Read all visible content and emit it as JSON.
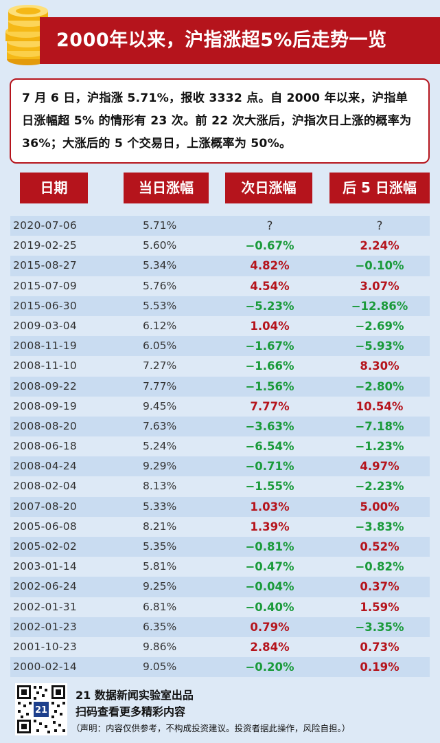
{
  "header": {
    "title": "2000年以来，沪指涨超5%后走势一览"
  },
  "intro": {
    "text": "7 月 6 日，沪指涨 5.71%，报收 3332 点。自 2000 年以来，沪指单日涨幅超 5% 的情形有 23 次。前 22 次大涨后，沪指次日上涨的概率为 36%；大涨后的 5 个交易日，上涨概率为 50%。"
  },
  "columns": [
    "日期",
    "当日涨幅",
    "次日涨幅",
    "后 5 日涨幅"
  ],
  "rows": [
    {
      "date": "2020-07-06",
      "day": "5.71%",
      "next": "?",
      "five": "?"
    },
    {
      "date": "2019-02-25",
      "day": "5.60%",
      "next": "−0.67%",
      "five": "2.24%"
    },
    {
      "date": "2015-08-27",
      "day": "5.34%",
      "next": "4.82%",
      "five": "−0.10%"
    },
    {
      "date": "2015-07-09",
      "day": "5.76%",
      "next": "4.54%",
      "five": "3.07%"
    },
    {
      "date": "2015-06-30",
      "day": "5.53%",
      "next": "−5.23%",
      "five": "−12.86%"
    },
    {
      "date": "2009-03-04",
      "day": "6.12%",
      "next": "1.04%",
      "five": "−2.69%"
    },
    {
      "date": "2008-11-19",
      "day": "6.05%",
      "next": "−1.67%",
      "five": "−5.93%"
    },
    {
      "date": "2008-11-10",
      "day": "7.27%",
      "next": "−1.66%",
      "five": "8.30%"
    },
    {
      "date": "2008-09-22",
      "day": "7.77%",
      "next": "−1.56%",
      "five": "−2.80%"
    },
    {
      "date": "2008-09-19",
      "day": "9.45%",
      "next": "7.77%",
      "five": "10.54%"
    },
    {
      "date": "2008-08-20",
      "day": "7.63%",
      "next": "−3.63%",
      "five": "−7.18%"
    },
    {
      "date": "2008-06-18",
      "day": "5.24%",
      "next": "−6.54%",
      "five": "−1.23%"
    },
    {
      "date": "2008-04-24",
      "day": "9.29%",
      "next": "−0.71%",
      "five": "4.97%"
    },
    {
      "date": "2008-02-04",
      "day": "8.13%",
      "next": "−1.55%",
      "five": "−2.23%"
    },
    {
      "date": "2007-08-20",
      "day": "5.33%",
      "next": "1.03%",
      "five": "5.00%"
    },
    {
      "date": "2005-06-08",
      "day": "8.21%",
      "next": "1.39%",
      "five": "−3.83%"
    },
    {
      "date": "2005-02-02",
      "day": "5.35%",
      "next": "−0.81%",
      "five": "0.52%"
    },
    {
      "date": "2003-01-14",
      "day": "5.81%",
      "next": "−0.47%",
      "five": "−0.82%"
    },
    {
      "date": "2002-06-24",
      "day": "9.25%",
      "next": "−0.04%",
      "five": "0.37%"
    },
    {
      "date": "2002-01-31",
      "day": "6.81%",
      "next": "−0.40%",
      "five": "1.59%"
    },
    {
      "date": "2002-01-23",
      "day": "6.35%",
      "next": "0.79%",
      "five": "−3.35%"
    },
    {
      "date": "2001-10-23",
      "day": "9.86%",
      "next": "2.84%",
      "five": "0.73%"
    },
    {
      "date": "2000-02-14",
      "day": "9.05%",
      "next": "−0.20%",
      "five": "0.19%"
    }
  ],
  "footer": {
    "line1": "21 数据新闻实验室出品",
    "line2": "扫码查看更多精彩内容",
    "disclaimer": "（声明：内容仅供参考，不构成投资建议。投资者据此操作，风险自担。）",
    "qr_logo": "21"
  },
  "colors": {
    "brand_red": "#b5141c",
    "up": "#b5141c",
    "down": "#1a9a3a",
    "background": "#dde9f6",
    "row_alt": "#c9dcf1",
    "coin_gold": "#f5b816"
  }
}
